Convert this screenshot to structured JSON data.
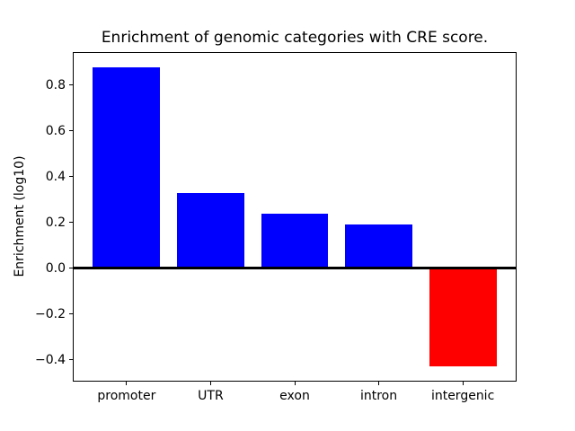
{
  "chart_data": {
    "type": "bar",
    "title": "Enrichment of genomic categories with CRE score.",
    "ylabel": "Enrichment (log10)",
    "xlabel": "",
    "categories": [
      "promoter",
      "UTR",
      "exon",
      "intron",
      "intergenic"
    ],
    "values": [
      0.88,
      0.33,
      0.24,
      0.19,
      -0.43
    ],
    "bar_colors": [
      "#0000ff",
      "#0000ff",
      "#0000ff",
      "#0000ff",
      "#ff0000"
    ],
    "positive_color": "#0000ff",
    "negative_color": "#ff0000",
    "bar_width_fraction": 0.8,
    "yticks": [
      0.8,
      0.6,
      0.4,
      0.2,
      0.0,
      -0.2,
      -0.4
    ],
    "ytick_labels": [
      "0.8",
      "0.6",
      "0.4",
      "0.2",
      "0.0",
      "−0.2",
      "−0.4"
    ],
    "ylim": [
      -0.495,
      0.945
    ],
    "xlim": [
      -0.64,
      4.64
    ],
    "zero_line": true,
    "zero_line_color": "#000000",
    "axis_color": "#000000",
    "background_color": "#ffffff",
    "grid": false,
    "legend": false
  }
}
